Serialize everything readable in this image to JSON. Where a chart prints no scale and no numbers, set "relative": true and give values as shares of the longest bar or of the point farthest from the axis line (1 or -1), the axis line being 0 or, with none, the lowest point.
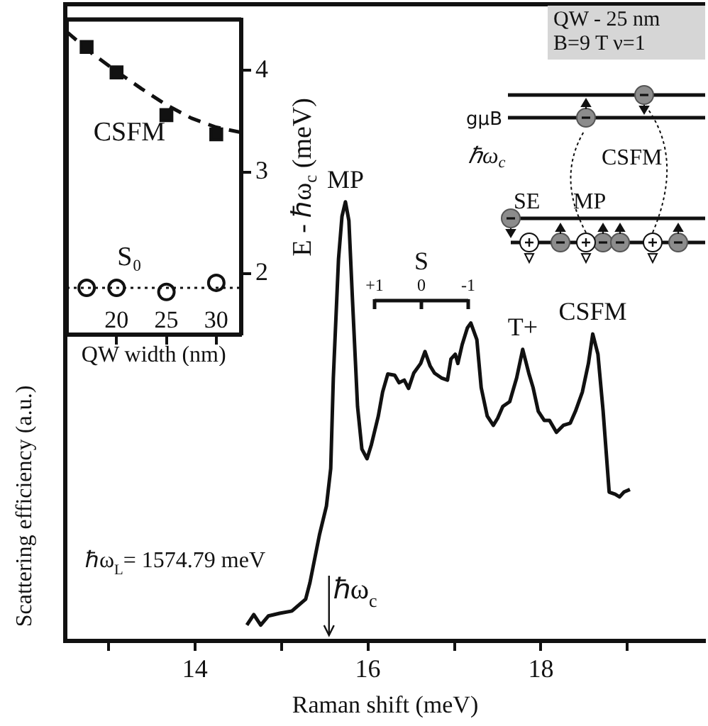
{
  "chart_data": [
    {
      "type": "line",
      "relative": true,
      "xlabel": "Raman shift (meV)",
      "ylabel": "Scattering efficiency (a.u.)",
      "xlim": [
        12.5,
        19.9
      ],
      "xticks": [
        {
          "value": 13,
          "label": null
        },
        14,
        {
          "value": 15,
          "label": null
        },
        16,
        {
          "value": 17,
          "label": null
        },
        18,
        {
          "value": 19,
          "label": null
        }
      ],
      "tick_labels": "x",
      "x": [
        14.6,
        14.68,
        14.76,
        14.85,
        14.98,
        15.12,
        15.22,
        15.28,
        15.33,
        15.44,
        15.52,
        15.57,
        15.6,
        15.66,
        15.7,
        15.74,
        15.78,
        15.82,
        15.88,
        15.93,
        15.99,
        16.04,
        16.12,
        16.17,
        16.23,
        16.31,
        16.36,
        16.42,
        16.47,
        16.53,
        16.61,
        16.66,
        16.72,
        16.77,
        16.85,
        16.92,
        16.96,
        17.01,
        17.04,
        17.09,
        17.15,
        17.19,
        17.26,
        17.31,
        17.38,
        17.45,
        17.5,
        17.56,
        17.64,
        17.72,
        17.79,
        17.86,
        17.91,
        17.97,
        18.04,
        18.1,
        18.18,
        18.26,
        18.34,
        18.4,
        18.48,
        18.55,
        18.6,
        18.66,
        18.72,
        18.79,
        18.86,
        18.91,
        18.96,
        19.03
      ],
      "series": [
        {
          "color": "#111111",
          "values": [
            0.036,
            0.06,
            0.036,
            0.057,
            0.063,
            0.068,
            0.085,
            0.095,
            0.133,
            0.242,
            0.307,
            0.393,
            0.599,
            0.87,
            0.967,
            1,
            0.957,
            0.783,
            0.534,
            0.437,
            0.415,
            0.447,
            0.512,
            0.567,
            0.608,
            0.605,
            0.588,
            0.594,
            0.575,
            0.61,
            0.632,
            0.659,
            0.626,
            0.61,
            0.599,
            0.594,
            0.642,
            0.653,
            0.632,
            0.675,
            0.713,
            0.724,
            0.686,
            0.577,
            0.512,
            0.491,
            0.507,
            0.534,
            0.545,
            0.599,
            0.664,
            0.61,
            0.577,
            0.523,
            0.502,
            0.502,
            0.475,
            0.491,
            0.496,
            0.523,
            0.567,
            0.632,
            0.699,
            0.653,
            0.523,
            0.339,
            0.334,
            0.328,
            0.339,
            0.345
          ]
        }
      ],
      "annotations": [
        "ℏω$_{L}$= 1574.79 meV",
        "QW - 25 nm",
        "B=9 T ν=1",
        "gμB",
        "ℏω$_{c}$",
        "CSFM",
        "MP",
        "SE",
        {
          "text": "MP",
          "x": 15.74,
          "y": 1
        },
        "S",
        "+1",
        "0",
        "-1",
        {
          "text": "T+",
          "x": 17.79,
          "y": 0.664
        },
        {
          "text": "CSFM",
          "x": 18.6,
          "y": 0.699
        }
      ],
      "ref_lines": [
        {
          "axis": "x",
          "value": 15.55,
          "label": "ℏω$_{c}$",
          "color": "#111111"
        }
      ]
    },
    {
      "type": "scatter",
      "xlabel": "QW width (nm)",
      "ylabel": "E - ℏω$_{c}$ (meV)",
      "xlim": [
        15,
        32.5
      ],
      "xticks": [
        20,
        25,
        30
      ],
      "ylim": [
        1.4,
        4.5
      ],
      "yticks": [
        2,
        3,
        4
      ],
      "series": [
        {
          "name": "CSFM",
          "color": "#111111",
          "marker": "square",
          "x": [
            17,
            20,
            25,
            30
          ],
          "values": [
            4.23,
            3.98,
            3.56,
            3.37
          ]
        },
        {
          "type": "line",
          "color": "#111111",
          "marker": "none",
          "line_style": "dashed",
          "x": [
            15,
            17.5,
            20,
            22.5,
            25,
            27.5,
            30,
            32.5
          ],
          "values": [
            4.38,
            4.17,
            3.99,
            3.82,
            3.66,
            3.53,
            3.44,
            3.39
          ]
        },
        {
          "name": "S₀",
          "color": "#111111",
          "marker": "circle",
          "x": [
            17,
            20,
            25,
            30
          ],
          "values": [
            1.86,
            1.86,
            1.82,
            1.91
          ]
        }
      ],
      "ref_lines": [
        {
          "axis": "y",
          "value": 1.86,
          "line_style": "dotted",
          "color": "#111111"
        }
      ]
    }
  ]
}
